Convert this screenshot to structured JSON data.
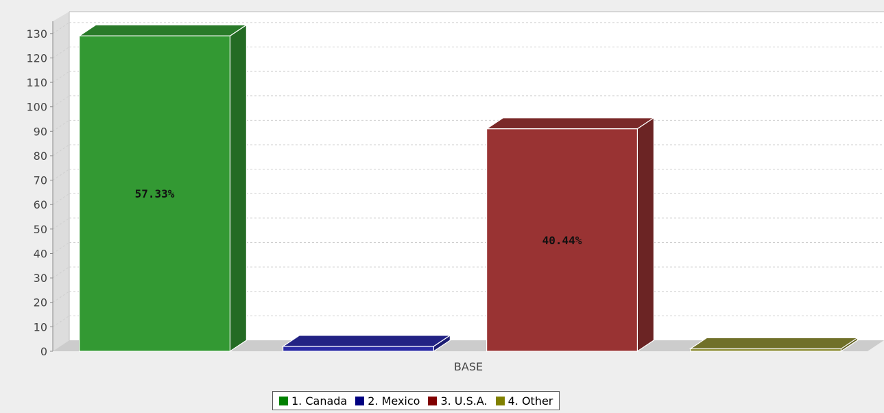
{
  "chart_data": {
    "type": "bar",
    "style": "3d",
    "categories": [
      "BASE"
    ],
    "series": [
      {
        "name": "1. Canada",
        "values": [
          129
        ],
        "label": "57.33%",
        "color": "#339933"
      },
      {
        "name": "2. Mexico",
        "values": [
          2
        ],
        "label": "",
        "color": "#2a2aa5"
      },
      {
        "name": "3. U.S.A.",
        "values": [
          91
        ],
        "label": "40.44%",
        "color": "#993333"
      },
      {
        "name": "4. Other",
        "values": [
          1
        ],
        "label": "",
        "color": "#8c8c33"
      }
    ],
    "legend_colors": [
      "#008000",
      "#000080",
      "#800000",
      "#808000"
    ],
    "yticks": [
      0,
      10,
      20,
      30,
      40,
      50,
      60,
      70,
      80,
      90,
      100,
      110,
      120,
      130
    ],
    "ylim": [
      0,
      135
    ],
    "xlabel": "BASE",
    "ylabel": "",
    "grid": true,
    "legend_position": "bottom"
  }
}
